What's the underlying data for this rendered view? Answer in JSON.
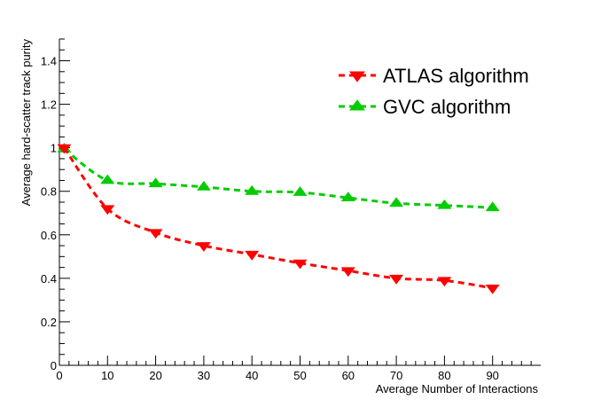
{
  "chart_data": {
    "type": "line",
    "title": "",
    "xlabel": "Average Number of Interactions",
    "ylabel": "Average hard-scatter track purity",
    "xlim": [
      0,
      100
    ],
    "ylim": [
      0,
      1.5
    ],
    "xticks": [
      0,
      10,
      20,
      30,
      40,
      50,
      60,
      70,
      80,
      90
    ],
    "xtick_labels": [
      "0",
      "10",
      "20",
      "30",
      "40",
      "50",
      "60",
      "70",
      "80",
      "90"
    ],
    "yticks": [
      0,
      0.2,
      0.4,
      0.6,
      0.8,
      1.0,
      1.2,
      1.4
    ],
    "ytick_labels": [
      "0",
      "0.2",
      "0.4",
      "0.6",
      "0.8",
      "1",
      "1.2",
      "1.4"
    ],
    "grid": false,
    "legend_position": "top-right",
    "series": [
      {
        "name": "ATLAS algorithm",
        "color": "#ff0000",
        "marker": "triangle-down",
        "line_style": "dashed",
        "x": [
          1,
          10,
          20,
          30,
          40,
          50,
          60,
          70,
          80,
          90
        ],
        "values": [
          1.0,
          0.72,
          0.61,
          0.55,
          0.51,
          0.47,
          0.435,
          0.4,
          0.39,
          0.355
        ]
      },
      {
        "name": "GVC algorithm",
        "color": "#00cc00",
        "marker": "triangle-up",
        "line_style": "dashed",
        "x": [
          1,
          10,
          20,
          30,
          40,
          50,
          60,
          70,
          80,
          90
        ],
        "values": [
          0.995,
          0.85,
          0.835,
          0.82,
          0.8,
          0.795,
          0.77,
          0.745,
          0.735,
          0.725
        ]
      }
    ]
  }
}
